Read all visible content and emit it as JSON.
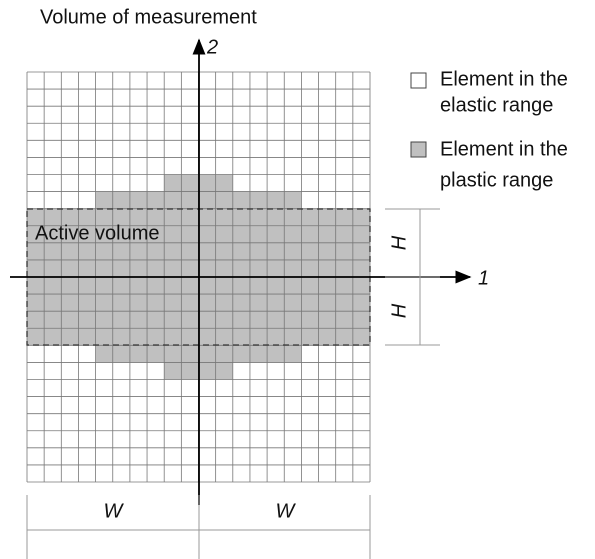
{
  "title": "Volume of measurement",
  "axes": {
    "vertical": "2",
    "horizontal": "1"
  },
  "legend": [
    {
      "lines": [
        "Element in the",
        "elastic range"
      ]
    },
    {
      "lines": [
        "Element in the",
        "plastic range"
      ]
    }
  ],
  "region_label": "Active volume",
  "dimensions": {
    "height": [
      "H",
      "H"
    ],
    "width": [
      "W",
      "W"
    ]
  }
}
